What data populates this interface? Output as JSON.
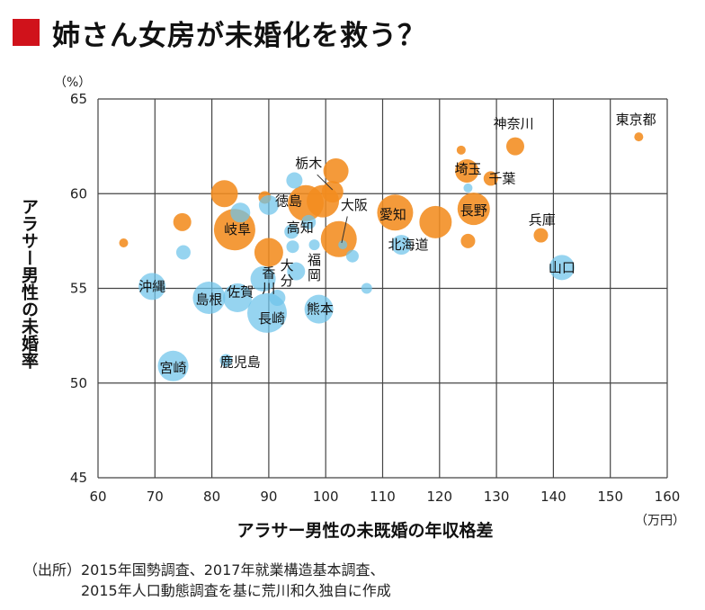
{
  "title": "姉さん女房が未婚化を救う？",
  "source": "（出所）2015年国勢調査、2017年就業構造基本調査、\n　　　　2015年人口動態調査を基に荒川和久独自に作成",
  "colors": {
    "accent": "#d0121b",
    "orange": "#f28c1f",
    "blue": "#6ec3ea",
    "grid": "#444444"
  },
  "chart_data": {
    "type": "scatter",
    "title": "",
    "xlabel": "アラサー男性の未既婚の年収格差",
    "xunit": "（万円）",
    "ylabel": "アラサー男性の未婚率",
    "yunit": "（%）",
    "xlim": [
      60,
      160
    ],
    "ylim": [
      45,
      65
    ],
    "xticks": [
      60,
      70,
      80,
      90,
      100,
      110,
      120,
      130,
      140,
      150,
      160
    ],
    "yticks": [
      45,
      50,
      55,
      60,
      65
    ],
    "grid": "vertical",
    "series": [
      {
        "color": "orange",
        "points": [
          {
            "x": 64.5,
            "y": 57.4,
            "r": 5
          },
          {
            "x": 74.8,
            "y": 58.5,
            "r": 10
          },
          {
            "x": 82.2,
            "y": 60.0,
            "r": 15
          },
          {
            "x": 84.0,
            "y": 58.1,
            "r": 23
          },
          {
            "x": 89.3,
            "y": 59.8,
            "r": 7
          },
          {
            "x": 90.0,
            "y": 56.9,
            "r": 16
          },
          {
            "x": 96.5,
            "y": 59.5,
            "r": 20
          },
          {
            "x": 99.5,
            "y": 59.6,
            "r": 18
          },
          {
            "x": 101.2,
            "y": 60.1,
            "r": 12
          },
          {
            "x": 101.8,
            "y": 61.2,
            "r": 14
          },
          {
            "x": 102.3,
            "y": 57.6,
            "r": 20
          },
          {
            "x": 112.2,
            "y": 59.0,
            "r": 20
          },
          {
            "x": 119.3,
            "y": 58.5,
            "r": 18
          },
          {
            "x": 123.8,
            "y": 62.3,
            "r": 5
          },
          {
            "x": 124.8,
            "y": 61.2,
            "r": 13
          },
          {
            "x": 125.0,
            "y": 57.5,
            "r": 8
          },
          {
            "x": 126.0,
            "y": 59.2,
            "r": 18
          },
          {
            "x": 129.0,
            "y": 60.8,
            "r": 8
          },
          {
            "x": 133.3,
            "y": 62.5,
            "r": 10
          },
          {
            "x": 137.8,
            "y": 57.8,
            "r": 8
          },
          {
            "x": 155.0,
            "y": 63.0,
            "r": 5
          }
        ]
      },
      {
        "color": "blue",
        "points": [
          {
            "x": 69.5,
            "y": 55.1,
            "r": 15
          },
          {
            "x": 73.2,
            "y": 50.9,
            "r": 17
          },
          {
            "x": 75.0,
            "y": 56.9,
            "r": 8
          },
          {
            "x": 79.5,
            "y": 54.5,
            "r": 18
          },
          {
            "x": 82.5,
            "y": 51.2,
            "r": 7
          },
          {
            "x": 84.5,
            "y": 54.5,
            "r": 16
          },
          {
            "x": 85.0,
            "y": 59.0,
            "r": 11
          },
          {
            "x": 89.0,
            "y": 55.5,
            "r": 14
          },
          {
            "x": 89.7,
            "y": 53.7,
            "r": 22
          },
          {
            "x": 90.0,
            "y": 59.4,
            "r": 11
          },
          {
            "x": 91.5,
            "y": 54.5,
            "r": 9
          },
          {
            "x": 94.0,
            "y": 58.0,
            "r": 8
          },
          {
            "x": 94.2,
            "y": 57.2,
            "r": 7
          },
          {
            "x": 94.5,
            "y": 60.7,
            "r": 9
          },
          {
            "x": 94.8,
            "y": 55.9,
            "r": 10
          },
          {
            "x": 97.0,
            "y": 58.5,
            "r": 8
          },
          {
            "x": 98.0,
            "y": 57.3,
            "r": 6
          },
          {
            "x": 98.8,
            "y": 53.9,
            "r": 16
          },
          {
            "x": 103.0,
            "y": 57.3,
            "r": 5
          },
          {
            "x": 104.7,
            "y": 56.7,
            "r": 7
          },
          {
            "x": 107.2,
            "y": 55.0,
            "r": 6
          },
          {
            "x": 113.3,
            "y": 57.3,
            "r": 11
          },
          {
            "x": 125.0,
            "y": 60.3,
            "r": 5
          },
          {
            "x": 141.5,
            "y": 56.1,
            "r": 14
          }
        ]
      }
    ],
    "annotations": [
      {
        "text": "東京都",
        "x": 154.5,
        "y": 63.9
      },
      {
        "text": "神奈川",
        "x": 133.0,
        "y": 63.7
      },
      {
        "text": "埼玉",
        "x": 125.0,
        "y": 61.3
      },
      {
        "text": "千葉",
        "x": 131.0,
        "y": 60.8
      },
      {
        "text": "長野",
        "x": 126.0,
        "y": 59.1
      },
      {
        "text": "兵庫",
        "x": 138.0,
        "y": 58.6
      },
      {
        "text": "山口",
        "x": 141.5,
        "y": 56.1
      },
      {
        "text": "愛知",
        "x": 111.8,
        "y": 58.9
      },
      {
        "text": "北海道",
        "x": 114.5,
        "y": 57.3
      },
      {
        "text": "大阪",
        "x": 105.0,
        "y": 59.4
      },
      {
        "text": "栃木",
        "x": 97.0,
        "y": 61.6
      },
      {
        "text": "徳島",
        "x": 93.5,
        "y": 59.6
      },
      {
        "text": "高知",
        "x": 95.5,
        "y": 58.2
      },
      {
        "text": "岐阜",
        "x": 84.5,
        "y": 58.1
      },
      {
        "text": "福",
        "x": 98.0,
        "y": 56.5
      },
      {
        "text": "岡",
        "x": 98.0,
        "y": 55.7
      },
      {
        "text": "大",
        "x": 93.2,
        "y": 56.2
      },
      {
        "text": "分",
        "x": 93.2,
        "y": 55.4
      },
      {
        "text": "香",
        "x": 90.0,
        "y": 55.8
      },
      {
        "text": "川",
        "x": 90.0,
        "y": 55.0
      },
      {
        "text": "佐賀",
        "x": 85.0,
        "y": 54.8
      },
      {
        "text": "島根",
        "x": 79.5,
        "y": 54.4
      },
      {
        "text": "沖縄",
        "x": 69.5,
        "y": 55.1
      },
      {
        "text": "熊本",
        "x": 99.0,
        "y": 53.9
      },
      {
        "text": "長崎",
        "x": 90.5,
        "y": 53.4
      },
      {
        "text": "鹿児島",
        "x": 85.0,
        "y": 51.1
      },
      {
        "text": "宮崎",
        "x": 73.2,
        "y": 50.8
      }
    ],
    "leaders": [
      {
        "from": [
          98.5,
          61.0
        ],
        "to": [
          101.2,
          60.2
        ]
      },
      {
        "from": [
          103.8,
          58.8
        ],
        "to": [
          102.8,
          57.4
        ]
      }
    ]
  }
}
